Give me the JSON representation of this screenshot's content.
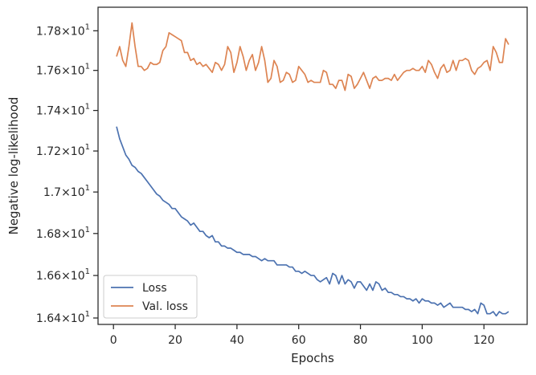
{
  "chart_data": {
    "type": "line",
    "title": "",
    "xlabel": "Epochs",
    "ylabel": "Negative log-likelihood",
    "xlim": [
      -5,
      134
    ],
    "ylim": [
      16.37,
      17.92
    ],
    "yscale": "log",
    "grid": false,
    "legend_position": "lower-left",
    "x_ticks": [
      {
        "value": 0,
        "label": "0"
      },
      {
        "value": 20,
        "label": "20"
      },
      {
        "value": 40,
        "label": "40"
      },
      {
        "value": 60,
        "label": "60"
      },
      {
        "value": 80,
        "label": "80"
      },
      {
        "value": 100,
        "label": "100"
      },
      {
        "value": 120,
        "label": "120"
      }
    ],
    "y_ticks": [
      {
        "value": 16.4,
        "mantissa": "1.64",
        "base": "10",
        "exp": "1"
      },
      {
        "value": 16.6,
        "mantissa": "1.66",
        "base": "10",
        "exp": "1"
      },
      {
        "value": 16.8,
        "mantissa": "1.68",
        "base": "10",
        "exp": "1"
      },
      {
        "value": 17.0,
        "mantissa": "1.7",
        "base": "10",
        "exp": "1"
      },
      {
        "value": 17.2,
        "mantissa": "1.72",
        "base": "10",
        "exp": "1"
      },
      {
        "value": 17.4,
        "mantissa": "1.74",
        "base": "10",
        "exp": "1"
      },
      {
        "value": 17.6,
        "mantissa": "1.76",
        "base": "10",
        "exp": "1"
      },
      {
        "value": 17.8,
        "mantissa": "1.78",
        "base": "10",
        "exp": "1"
      }
    ],
    "series": [
      {
        "name": "Loss",
        "color": "#4c72b0",
        "x": [
          1,
          2,
          3,
          4,
          5,
          6,
          7,
          8,
          9,
          10,
          11,
          12,
          13,
          14,
          15,
          16,
          17,
          18,
          19,
          20,
          21,
          22,
          23,
          24,
          25,
          26,
          27,
          28,
          29,
          30,
          31,
          32,
          33,
          34,
          35,
          36,
          37,
          38,
          39,
          40,
          41,
          42,
          43,
          44,
          45,
          46,
          47,
          48,
          49,
          50,
          51,
          52,
          53,
          54,
          55,
          56,
          57,
          58,
          59,
          60,
          61,
          62,
          63,
          64,
          65,
          66,
          67,
          68,
          69,
          70,
          71,
          72,
          73,
          74,
          75,
          76,
          77,
          78,
          79,
          80,
          81,
          82,
          83,
          84,
          85,
          86,
          87,
          88,
          89,
          90,
          91,
          92,
          93,
          94,
          95,
          96,
          97,
          98,
          99,
          100,
          101,
          102,
          103,
          104,
          105,
          106,
          107,
          108,
          109,
          110,
          111,
          112,
          113,
          114,
          115,
          116,
          117,
          118,
          119,
          120,
          121,
          122,
          123,
          124,
          125,
          126,
          127,
          128
        ],
        "values": [
          17.32,
          17.26,
          17.22,
          17.18,
          17.16,
          17.13,
          17.12,
          17.1,
          17.09,
          17.07,
          17.05,
          17.03,
          17.01,
          16.99,
          16.98,
          16.96,
          16.95,
          16.94,
          16.92,
          16.92,
          16.9,
          16.88,
          16.87,
          16.86,
          16.84,
          16.85,
          16.83,
          16.81,
          16.81,
          16.79,
          16.78,
          16.79,
          16.76,
          16.76,
          16.74,
          16.74,
          16.73,
          16.73,
          16.72,
          16.71,
          16.71,
          16.7,
          16.7,
          16.7,
          16.69,
          16.69,
          16.68,
          16.67,
          16.68,
          16.67,
          16.67,
          16.67,
          16.65,
          16.65,
          16.65,
          16.65,
          16.64,
          16.64,
          16.62,
          16.62,
          16.61,
          16.62,
          16.61,
          16.6,
          16.6,
          16.58,
          16.57,
          16.58,
          16.59,
          16.56,
          16.61,
          16.6,
          16.56,
          16.6,
          16.56,
          16.58,
          16.57,
          16.54,
          16.57,
          16.57,
          16.55,
          16.53,
          16.56,
          16.53,
          16.57,
          16.56,
          16.53,
          16.54,
          16.52,
          16.52,
          16.51,
          16.51,
          16.5,
          16.5,
          16.49,
          16.49,
          16.48,
          16.49,
          16.47,
          16.49,
          16.48,
          16.48,
          16.47,
          16.47,
          16.46,
          16.47,
          16.45,
          16.46,
          16.47,
          16.45,
          16.45,
          16.45,
          16.45,
          16.44,
          16.44,
          16.43,
          16.44,
          16.42,
          16.47,
          16.46,
          16.42,
          16.42,
          16.43,
          16.41,
          16.43,
          16.42,
          16.42,
          16.43
        ]
      },
      {
        "name": "Val. loss",
        "color": "#dd8452",
        "x": [
          1,
          2,
          3,
          4,
          5,
          6,
          7,
          8,
          9,
          10,
          11,
          12,
          13,
          14,
          15,
          16,
          17,
          18,
          19,
          20,
          21,
          22,
          23,
          24,
          25,
          26,
          27,
          28,
          29,
          30,
          31,
          32,
          33,
          34,
          35,
          36,
          37,
          38,
          39,
          40,
          41,
          42,
          43,
          44,
          45,
          46,
          47,
          48,
          49,
          50,
          51,
          52,
          53,
          54,
          55,
          56,
          57,
          58,
          59,
          60,
          61,
          62,
          63,
          64,
          65,
          66,
          67,
          68,
          69,
          70,
          71,
          72,
          73,
          74,
          75,
          76,
          77,
          78,
          79,
          80,
          81,
          82,
          83,
          84,
          85,
          86,
          87,
          88,
          89,
          90,
          91,
          92,
          93,
          94,
          95,
          96,
          97,
          98,
          99,
          100,
          101,
          102,
          103,
          104,
          105,
          106,
          107,
          108,
          109,
          110,
          111,
          112,
          113,
          114,
          115,
          116,
          117,
          118,
          119,
          120,
          121,
          122,
          123,
          124,
          125,
          126,
          127,
          128
        ],
        "values": [
          17.67,
          17.72,
          17.65,
          17.62,
          17.72,
          17.84,
          17.72,
          17.62,
          17.62,
          17.6,
          17.61,
          17.64,
          17.63,
          17.63,
          17.64,
          17.7,
          17.72,
          17.79,
          17.78,
          17.77,
          17.76,
          17.75,
          17.69,
          17.69,
          17.65,
          17.66,
          17.63,
          17.64,
          17.62,
          17.63,
          17.61,
          17.59,
          17.64,
          17.63,
          17.6,
          17.63,
          17.72,
          17.69,
          17.59,
          17.64,
          17.72,
          17.67,
          17.6,
          17.65,
          17.68,
          17.6,
          17.64,
          17.72,
          17.65,
          17.54,
          17.56,
          17.65,
          17.62,
          17.54,
          17.55,
          17.59,
          17.58,
          17.54,
          17.55,
          17.62,
          17.6,
          17.58,
          17.54,
          17.55,
          17.54,
          17.54,
          17.54,
          17.6,
          17.59,
          17.53,
          17.53,
          17.51,
          17.55,
          17.55,
          17.5,
          17.58,
          17.57,
          17.51,
          17.53,
          17.56,
          17.59,
          17.55,
          17.51,
          17.56,
          17.57,
          17.55,
          17.55,
          17.56,
          17.56,
          17.55,
          17.58,
          17.55,
          17.57,
          17.59,
          17.6,
          17.6,
          17.61,
          17.6,
          17.6,
          17.62,
          17.59,
          17.65,
          17.63,
          17.59,
          17.56,
          17.61,
          17.63,
          17.59,
          17.6,
          17.65,
          17.6,
          17.65,
          17.65,
          17.66,
          17.65,
          17.6,
          17.58,
          17.61,
          17.62,
          17.64,
          17.65,
          17.6,
          17.72,
          17.69,
          17.64,
          17.64,
          17.76,
          17.73
        ]
      }
    ]
  }
}
